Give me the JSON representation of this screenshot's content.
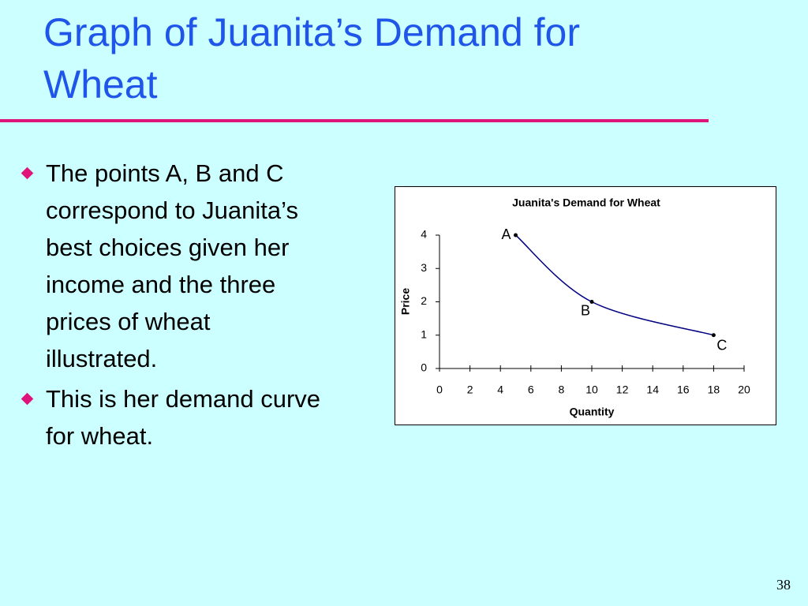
{
  "slide": {
    "title": "Graph of Juanita’s Demand for Wheat",
    "bullets": [
      "The points A, B and C correspond to Juanita’s best choices given her income and the three prices of wheat illustrated.",
      "This is her demand curve for wheat."
    ],
    "page_number": "38"
  },
  "chart_data": {
    "type": "line",
    "title": "Juanita's Demand for Wheat",
    "x_label": "Quantity",
    "y_label": "Price",
    "x": [
      5,
      10,
      18
    ],
    "values": [
      4,
      2,
      1
    ],
    "labels": [
      "A",
      "B",
      "C"
    ],
    "color": "#000080",
    "xlim": [
      0,
      20
    ],
    "xticks": [
      0,
      2,
      4,
      6,
      8,
      10,
      12,
      14,
      16,
      18,
      20
    ],
    "ylim": [
      0,
      4
    ],
    "yticks": [
      0,
      1,
      2,
      3,
      4
    ]
  }
}
